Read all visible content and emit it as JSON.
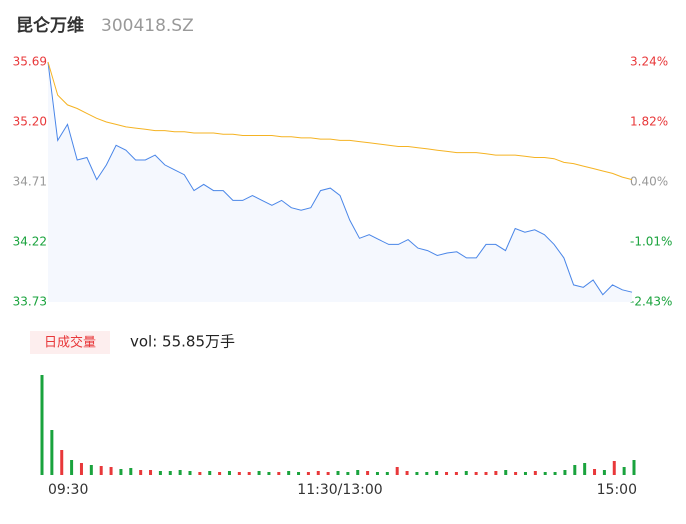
{
  "chart_data": [
    {
      "type": "line",
      "title": "昆仑万维",
      "subtitle": "300418.SZ",
      "categories": [
        "09:30",
        null,
        null,
        null,
        null,
        null,
        null,
        null,
        null,
        null,
        null,
        null,
        null,
        null,
        null,
        null,
        null,
        null,
        null,
        null,
        null,
        null,
        null,
        null,
        null,
        null,
        null,
        null,
        null,
        null,
        "11:30/13:00",
        null,
        null,
        null,
        null,
        null,
        null,
        null,
        null,
        null,
        null,
        null,
        null,
        null,
        null,
        null,
        null,
        null,
        null,
        null,
        null,
        null,
        null,
        null,
        null,
        null,
        null,
        null,
        null,
        null,
        "15:00"
      ],
      "series": [
        {
          "name": "price",
          "color": "#4a86e8",
          "fill": "#f5f8fe",
          "values": [
            35.69,
            35.05,
            35.18,
            34.89,
            34.91,
            34.73,
            34.85,
            35.01,
            34.97,
            34.89,
            34.89,
            34.93,
            34.85,
            34.81,
            34.77,
            34.64,
            34.69,
            34.64,
            34.64,
            34.56,
            34.56,
            34.6,
            34.56,
            34.52,
            34.56,
            34.5,
            34.48,
            34.5,
            34.64,
            34.66,
            34.6,
            34.4,
            34.25,
            34.28,
            34.24,
            34.2,
            34.2,
            34.24,
            34.17,
            34.15,
            34.11,
            34.13,
            34.14,
            34.09,
            34.09,
            34.2,
            34.2,
            34.15,
            34.33,
            34.3,
            34.32,
            34.28,
            34.2,
            34.09,
            33.87,
            33.85,
            33.91,
            33.79,
            33.87,
            33.83,
            33.81
          ]
        },
        {
          "name": "avg",
          "color": "#f5b323",
          "values": [
            35.69,
            35.42,
            35.34,
            35.31,
            35.27,
            35.23,
            35.2,
            35.18,
            35.16,
            35.15,
            35.14,
            35.13,
            35.13,
            35.12,
            35.12,
            35.11,
            35.11,
            35.11,
            35.1,
            35.1,
            35.09,
            35.09,
            35.09,
            35.09,
            35.08,
            35.08,
            35.07,
            35.07,
            35.06,
            35.06,
            35.05,
            35.05,
            35.04,
            35.03,
            35.02,
            35.01,
            35.0,
            35.0,
            34.99,
            34.98,
            34.97,
            34.96,
            34.95,
            34.95,
            34.95,
            34.94,
            34.93,
            34.93,
            34.93,
            34.92,
            34.91,
            34.91,
            34.9,
            34.87,
            34.86,
            34.84,
            34.82,
            34.8,
            34.78,
            34.75,
            34.73
          ]
        }
      ],
      "ylim": [
        33.73,
        35.69
      ],
      "yticks": [
        35.69,
        {
          "value": 35.2,
          "label": "35.20"
        },
        34.71,
        34.22,
        33.73
      ],
      "ytick_colors": [
        "#e8383a",
        "#e8383a",
        "#999999",
        "#1aa33d",
        "#1aa33d"
      ],
      "y2lim": [
        -2.43,
        3.24
      ],
      "y2ticks": [
        {
          "value": 3.24,
          "label": "3.24%"
        },
        {
          "value": 1.82,
          "label": "1.82%"
        },
        {
          "value": 0.4,
          "label": "0.40%"
        },
        {
          "value": -1.01,
          "label": "-1.01%"
        },
        {
          "value": -2.43,
          "label": "-2.43%"
        }
      ],
      "y2tick_colors": [
        "#e8383a",
        "#e8383a",
        "#999999",
        "#1aa33d",
        "#1aa33d"
      ]
    },
    {
      "type": "bar",
      "legend": "日成交量",
      "annotation": "vol: 55.85万手",
      "up_color": "#e8383a",
      "down_color": "#1aa33d",
      "values": [
        100,
        45,
        25,
        15,
        12,
        10,
        9,
        8,
        6,
        7,
        5,
        5,
        4,
        4,
        5,
        4,
        3,
        4,
        3,
        4,
        3,
        3,
        4,
        3,
        3,
        4,
        3,
        3,
        4,
        3,
        4,
        3,
        5,
        4,
        3,
        3,
        8,
        4,
        3,
        3,
        4,
        3,
        3,
        4,
        3,
        3,
        4,
        5,
        3,
        3,
        4,
        3,
        3,
        5,
        10,
        12,
        6,
        5,
        14,
        8,
        15
      ]
    }
  ]
}
